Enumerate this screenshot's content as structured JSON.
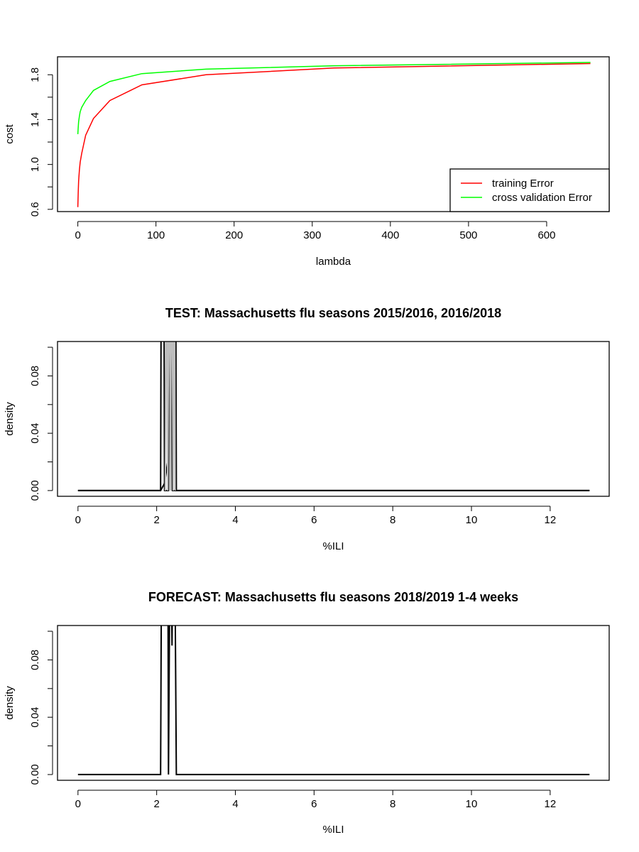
{
  "chart_data": [
    {
      "type": "line",
      "title": "",
      "xlabel": "lambda",
      "ylabel": "cost",
      "xlim": [
        -26,
        680
      ],
      "ylim": [
        0.58,
        1.96
      ],
      "x_ticks": [
        0,
        100,
        200,
        300,
        400,
        500,
        600
      ],
      "x_tick_labels": [
        "0",
        "100",
        "200",
        "300",
        "400",
        "500",
        "600"
      ],
      "y_ticks": [
        0.6,
        0.8,
        1.0,
        1.2,
        1.4,
        1.6,
        1.8
      ],
      "y_tick_labels": [
        "0.6",
        "",
        "1.0",
        "",
        "1.4",
        "",
        "1.8"
      ],
      "grid": false,
      "legend": "bottom-right",
      "series": [
        {
          "name": "training Error",
          "color": "#ff0000",
          "x": [
            0,
            0.5,
            1,
            2,
            3,
            5,
            10,
            20,
            41,
            82,
            164,
            328,
            656
          ],
          "y": [
            0.62,
            0.75,
            0.85,
            0.95,
            1.02,
            1.1,
            1.26,
            1.41,
            1.57,
            1.71,
            1.8,
            1.86,
            1.9
          ]
        },
        {
          "name": "cross validation Error",
          "color": "#00ff00",
          "x": [
            0,
            0.5,
            1,
            2,
            3,
            5,
            10,
            20,
            41,
            82,
            164,
            328,
            656
          ],
          "y": [
            1.27,
            1.33,
            1.38,
            1.43,
            1.47,
            1.51,
            1.57,
            1.66,
            1.74,
            1.81,
            1.85,
            1.88,
            1.91
          ]
        }
      ]
    },
    {
      "type": "line",
      "title": "TEST: Massachusetts  flu seasons 2015/2016, 2016/2018",
      "xlabel": "%ILI",
      "ylabel": "density",
      "xlim": [
        -0.52,
        13.5
      ],
      "ylim": [
        -0.004,
        0.104
      ],
      "x_ticks": [
        0,
        2,
        4,
        6,
        8,
        10,
        12
      ],
      "x_tick_labels": [
        "0",
        "2",
        "4",
        "6",
        "8",
        "10",
        "12"
      ],
      "y_ticks": [
        0,
        0.02,
        0.04,
        0.06,
        0.08,
        0.1
      ],
      "y_tick_labels": [
        "0.00",
        "",
        "0.04",
        "",
        "0.08",
        ""
      ],
      "grid": false,
      "series": [
        {
          "color": "#000000",
          "x": [
            0,
            2.1,
            2.12,
            2.18,
            2.2,
            2.3,
            2.33,
            2.38,
            2.4,
            2.45,
            2.48,
            2.5,
            13
          ],
          "y": [
            0,
            0,
            0.2,
            0.2,
            0,
            0,
            0.2,
            0.2,
            0,
            0.2,
            0.2,
            0,
            0
          ]
        },
        {
          "color": "#000000",
          "x": [
            0,
            2.1,
            2.2,
            2.28,
            2.3,
            2.36,
            2.4,
            13
          ],
          "y": [
            0,
            0,
            0.005,
            0.02,
            0.2,
            0.2,
            0,
            0
          ]
        },
        {
          "color": "#bebebe",
          "x": [
            2.22,
            2.25,
            2.28,
            2.32,
            2.35,
            2.38,
            2.42,
            2.45,
            2.47
          ],
          "y": [
            0,
            0.2,
            0,
            0.2,
            0,
            0.2,
            0,
            0.2,
            0
          ]
        }
      ]
    },
    {
      "type": "line",
      "title": "FORECAST: Massachusetts flu seasons 2018/2019 1-4 weeks",
      "xlabel": "%ILI",
      "ylabel": "density",
      "xlim": [
        -0.52,
        13.5
      ],
      "ylim": [
        -0.004,
        0.104
      ],
      "x_ticks": [
        0,
        2,
        4,
        6,
        8,
        10,
        12
      ],
      "x_tick_labels": [
        "0",
        "2",
        "4",
        "6",
        "8",
        "10",
        "12"
      ],
      "y_ticks": [
        0,
        0.02,
        0.04,
        0.06,
        0.08,
        0.1
      ],
      "y_tick_labels": [
        "0.00",
        "",
        "0.04",
        "",
        "0.08",
        ""
      ],
      "grid": false,
      "series": [
        {
          "color": "#000000",
          "x": [
            0,
            2.1,
            2.13,
            2.28,
            2.3,
            2.35,
            2.39,
            2.42,
            2.45,
            2.5,
            13
          ],
          "y": [
            0,
            0,
            0.2,
            0.2,
            0,
            0.2,
            0.09,
            0.2,
            0.2,
            0,
            0
          ]
        }
      ]
    }
  ]
}
